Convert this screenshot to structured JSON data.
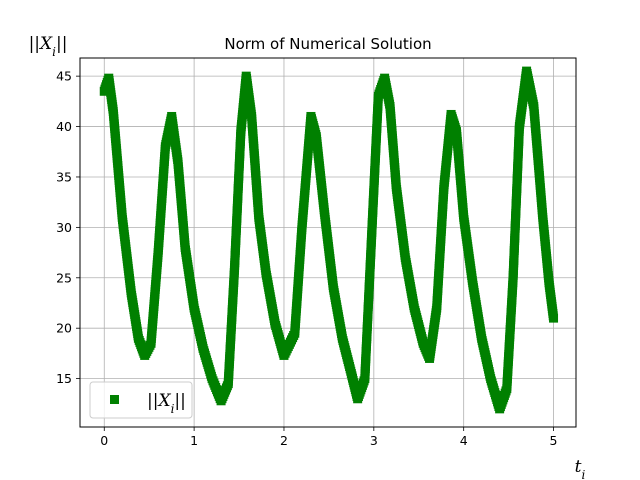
{
  "chart_data": {
    "type": "scatter",
    "title": "Norm of Numerical Solution",
    "xlabel": "t_i",
    "ylabel": "||X_i||",
    "xlim": [
      -0.27,
      5.25
    ],
    "ylim": [
      10.2,
      46.8
    ],
    "xticks": [
      0,
      1,
      2,
      3,
      4,
      5
    ],
    "yticks": [
      15,
      20,
      25,
      30,
      35,
      40,
      45
    ],
    "grid": true,
    "legend_position": "lower-left",
    "series": [
      {
        "name": "||X_i||",
        "color": "#008000",
        "marker": "square",
        "x": [
          0.0,
          0.05,
          0.1,
          0.2,
          0.3,
          0.38,
          0.45,
          0.52,
          0.6,
          0.68,
          0.75,
          0.82,
          0.9,
          1.0,
          1.1,
          1.2,
          1.3,
          1.38,
          1.45,
          1.52,
          1.58,
          1.64,
          1.72,
          1.8,
          1.9,
          2.0,
          2.12,
          2.2,
          2.3,
          2.36,
          2.45,
          2.55,
          2.65,
          2.75,
          2.82,
          2.9,
          2.98,
          3.05,
          3.12,
          3.18,
          3.25,
          3.35,
          3.45,
          3.55,
          3.62,
          3.7,
          3.78,
          3.86,
          3.92,
          4.0,
          4.1,
          4.2,
          4.3,
          4.4,
          4.48,
          4.55,
          4.62,
          4.7,
          4.78,
          4.88,
          4.95,
          5.0
        ],
        "y": [
          43.5,
          44.8,
          41.5,
          31.0,
          23.5,
          19.0,
          17.3,
          18.5,
          27.5,
          38.0,
          41.0,
          36.5,
          28.0,
          22.0,
          18.0,
          15.0,
          12.8,
          14.5,
          26.0,
          39.5,
          45.0,
          41.0,
          31.0,
          25.5,
          20.5,
          17.3,
          19.5,
          30.0,
          41.0,
          39.0,
          31.5,
          24.0,
          19.0,
          15.5,
          13.0,
          15.0,
          30.0,
          43.0,
          44.8,
          42.0,
          34.0,
          27.0,
          22.0,
          18.5,
          17.0,
          22.0,
          34.0,
          41.2,
          39.5,
          31.0,
          24.5,
          19.0,
          15.0,
          12.0,
          14.0,
          25.0,
          40.0,
          45.5,
          42.0,
          31.0,
          24.5,
          21.0
        ]
      }
    ]
  }
}
